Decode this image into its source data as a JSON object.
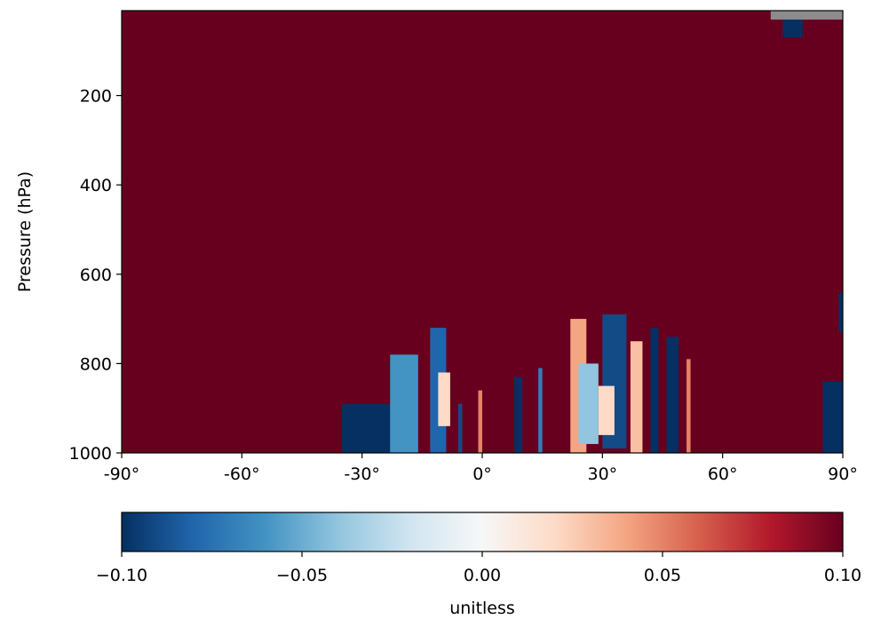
{
  "chart_data": {
    "type": "heatmap",
    "title": "",
    "xlabel": "",
    "ylabel": "Pressure (hPa)",
    "xlim": [
      -90,
      90
    ],
    "ylim": [
      1000,
      10
    ],
    "x_ticks": [
      -90,
      -60,
      -30,
      0,
      30,
      60,
      90
    ],
    "x_tick_labels": [
      "-90°",
      "-60°",
      "-30°",
      "0°",
      "30°",
      "60°",
      "90°"
    ],
    "y_ticks": [
      200,
      400,
      600,
      800,
      1000
    ],
    "y_tick_labels": [
      "200",
      "400",
      "600",
      "800",
      "1000"
    ],
    "colormap": "RdBu_r",
    "missing_color": "#8c8c8c",
    "background_value": 0.1,
    "colorbar": {
      "label": "unitless",
      "vmin": -0.1,
      "vmax": 0.1,
      "ticks": [
        -0.1,
        -0.05,
        0.0,
        0.05,
        0.1
      ],
      "tick_labels": [
        "−0.10",
        "−0.05",
        "0.00",
        "0.05",
        "0.10"
      ]
    },
    "features": [
      {
        "lat": [
          -35,
          -22
        ],
        "p": [
          890,
          1000
        ],
        "value": -0.1
      },
      {
        "lat": [
          -23,
          -16
        ],
        "p": [
          780,
          1000
        ],
        "value": -0.06
      },
      {
        "lat": [
          -13,
          -9
        ],
        "p": [
          720,
          1000
        ],
        "value": -0.08
      },
      {
        "lat": [
          -11,
          -8
        ],
        "p": [
          820,
          940
        ],
        "value": 0.02
      },
      {
        "lat": [
          -6,
          -5
        ],
        "p": [
          890,
          1000
        ],
        "value": -0.09
      },
      {
        "lat": [
          -1,
          0
        ],
        "p": [
          860,
          1000
        ],
        "value": 0.05
      },
      {
        "lat": [
          8,
          10
        ],
        "p": [
          830,
          1000
        ],
        "value": -0.1
      },
      {
        "lat": [
          14,
          15
        ],
        "p": [
          810,
          1000
        ],
        "value": -0.07
      },
      {
        "lat": [
          22,
          26
        ],
        "p": [
          700,
          1000
        ],
        "value": 0.04
      },
      {
        "lat": [
          24,
          29
        ],
        "p": [
          800,
          980
        ],
        "value": -0.04
      },
      {
        "lat": [
          30,
          36
        ],
        "p": [
          690,
          990
        ],
        "value": -0.09
      },
      {
        "lat": [
          29,
          33
        ],
        "p": [
          850,
          960
        ],
        "value": 0.02
      },
      {
        "lat": [
          37,
          40
        ],
        "p": [
          750,
          1000
        ],
        "value": 0.03
      },
      {
        "lat": [
          42,
          44
        ],
        "p": [
          720,
          1000
        ],
        "value": -0.1
      },
      {
        "lat": [
          46,
          49
        ],
        "p": [
          740,
          1000
        ],
        "value": -0.1
      },
      {
        "lat": [
          51,
          52
        ],
        "p": [
          790,
          1000
        ],
        "value": 0.05
      },
      {
        "lat": [
          85,
          90
        ],
        "p": [
          840,
          1000
        ],
        "value": -0.1
      },
      {
        "lat": [
          89,
          90
        ],
        "p": [
          640,
          730
        ],
        "value": -0.1
      },
      {
        "lat": [
          75,
          80
        ],
        "p": [
          30,
          70
        ],
        "value": -0.1
      },
      {
        "lat": [
          72,
          90
        ],
        "p": [
          10,
          30
        ],
        "value": "missing"
      }
    ]
  }
}
